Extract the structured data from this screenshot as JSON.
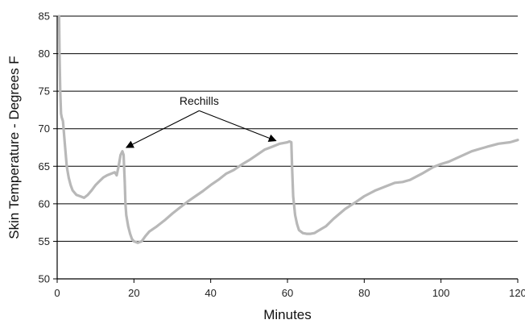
{
  "chart_data": {
    "type": "line",
    "title": "",
    "xlabel": "Minutes",
    "ylabel": "Skin Temperature - Degrees F",
    "xlim": [
      0,
      120
    ],
    "ylim": [
      50,
      85
    ],
    "xticks": [
      0,
      20,
      40,
      60,
      80,
      100,
      120
    ],
    "yticks": [
      50,
      55,
      60,
      65,
      70,
      75,
      80,
      85
    ],
    "grid": "horizontal",
    "legend": "none",
    "colors": {
      "line": "#b8b8b8",
      "grid": "#000000",
      "axis": "#000000"
    },
    "series": [
      {
        "x": [
          0.5,
          0.6,
          0.8,
          1.0,
          1.2,
          1.5,
          2.0,
          2.5,
          3.0,
          3.5,
          4.0,
          5.0,
          6.0,
          7.0,
          8.0,
          9.0,
          10.0,
          11.0,
          12.0,
          13.0,
          14.0,
          15.0,
          15.5,
          16.0,
          16.5,
          17.0,
          17.3,
          17.6,
          17.8,
          18.0,
          18.5,
          19.0,
          19.5,
          20.0,
          21.0,
          22.0,
          23.0,
          24.0,
          26.0,
          28.0,
          30.0,
          32.0,
          34.0,
          36.0,
          38.0,
          40.0,
          42.0,
          44.0,
          46.0,
          48.0,
          50.0,
          52.0,
          54.0,
          56.0,
          58.0,
          59.0,
          60.0,
          60.5,
          61.0,
          61.2,
          61.5,
          62.0,
          62.5,
          63.0,
          64.0,
          65.0,
          66.0,
          67.0,
          68.0,
          70.0,
          72.0,
          75.0,
          78.0,
          80.0,
          83.0,
          86.0,
          88.0,
          90.0,
          92.0,
          95.0,
          98.0,
          100.0,
          102.0,
          105.0,
          108.0,
          110.0,
          112.0,
          115.0,
          118.0,
          120.0
        ],
        "y": [
          85,
          80,
          75,
          72,
          71.5,
          71,
          68,
          65,
          63.5,
          62.5,
          61.8,
          61.2,
          61.0,
          60.8,
          61.2,
          61.8,
          62.5,
          63.0,
          63.5,
          63.8,
          64.0,
          64.2,
          63.8,
          65.0,
          66.5,
          67.0,
          66.5,
          63.0,
          60.0,
          58.5,
          57.0,
          56.0,
          55.3,
          55.0,
          54.8,
          55.0,
          55.7,
          56.3,
          57.0,
          57.8,
          58.7,
          59.5,
          60.3,
          61.0,
          61.7,
          62.5,
          63.2,
          64.0,
          64.5,
          65.2,
          65.8,
          66.5,
          67.2,
          67.6,
          68.0,
          68.1,
          68.2,
          68.3,
          68.2,
          65.0,
          61.0,
          58.5,
          57.3,
          56.5,
          56.1,
          56.0,
          56.0,
          56.1,
          56.4,
          57.0,
          58.0,
          59.3,
          60.3,
          61.0,
          61.8,
          62.4,
          62.8,
          62.9,
          63.2,
          64.0,
          64.9,
          65.3,
          65.6,
          66.3,
          67.0,
          67.3,
          67.6,
          68.0,
          68.2,
          68.5
        ]
      }
    ],
    "annotations": [
      {
        "text": "Rechills",
        "text_at": [
          37,
          73.2
        ],
        "arrows": [
          {
            "from": [
              37,
              72.4
            ],
            "to": [
              18,
              67.5
            ]
          },
          {
            "from": [
              37,
              72.4
            ],
            "to": [
              57,
              68.4
            ]
          }
        ]
      }
    ]
  }
}
